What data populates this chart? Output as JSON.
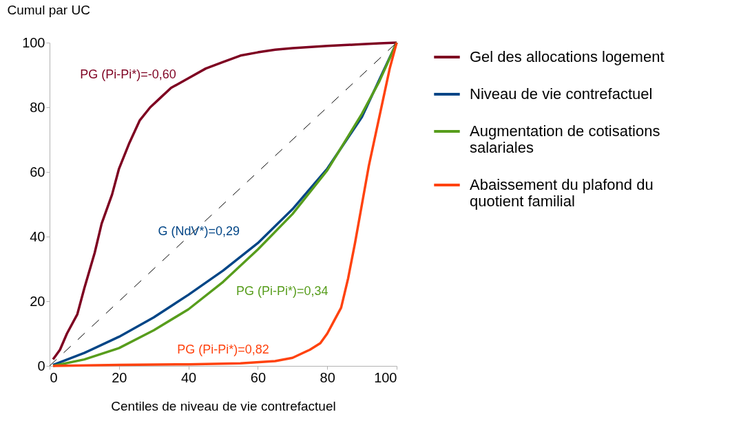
{
  "chart_data": {
    "type": "line",
    "xlabel": "Centiles de niveau de vie contrefactuel",
    "ylabel": "Cumul par UC",
    "xlim": [
      0,
      100
    ],
    "ylim": [
      0,
      100
    ],
    "xticks": [
      0,
      20,
      40,
      60,
      80,
      100
    ],
    "yticks": [
      0,
      20,
      40,
      60,
      80,
      100
    ],
    "grid": false,
    "legend": "right",
    "marker": "none",
    "line_style": "solid",
    "series": [
      {
        "name": "Gel des allocations logement",
        "color": "#7e0021",
        "x": [
          1,
          3,
          5,
          8,
          10,
          13,
          15,
          18,
          20,
          23,
          26,
          29,
          32,
          35,
          40,
          45,
          50,
          55,
          60,
          65,
          70,
          80,
          90,
          95,
          100
        ],
        "values": [
          2,
          5,
          10,
          16,
          24,
          35,
          44,
          53,
          61,
          69,
          76,
          80,
          83,
          86,
          89,
          92,
          94,
          96,
          97,
          97.8,
          98.3,
          99,
          99.5,
          99.8,
          100
        ]
      },
      {
        "name": "Niveau de vie contrefactuel",
        "color": "#004586",
        "x": [
          1,
          10,
          20,
          30,
          40,
          50,
          60,
          70,
          80,
          90,
          100
        ],
        "values": [
          0.3,
          4,
          9,
          15,
          22,
          29.5,
          38,
          48.5,
          61,
          77,
          100
        ]
      },
      {
        "name": "Augmentation de cotisations salariales",
        "color": "#579d1c",
        "x": [
          1,
          10,
          20,
          30,
          40,
          50,
          60,
          70,
          80,
          90,
          95,
          100
        ],
        "values": [
          0,
          2,
          5.5,
          11,
          17.5,
          26,
          36,
          47,
          60.5,
          78,
          88,
          100
        ]
      },
      {
        "name": "Abaissement du plafond du quotient familial",
        "color": "#ff420e",
        "x": [
          1,
          20,
          40,
          55,
          65,
          70,
          75,
          78,
          80,
          82,
          84,
          86,
          88,
          90,
          92,
          94,
          96,
          98,
          100
        ],
        "values": [
          0,
          0.3,
          0.5,
          0.8,
          1.5,
          2.5,
          5,
          7,
          10,
          14,
          18,
          27,
          38,
          50,
          62,
          72,
          82,
          92,
          100
        ]
      },
      {
        "color": "#000000",
        "line_style": "dashed",
        "x": [
          0,
          100
        ],
        "values": [
          0,
          100
        ]
      }
    ],
    "annotations": [
      "PG (Pi-Pi*)=-0,60",
      "G (NdV*)=0,29",
      "PG (Pi-Pi*)=0,34",
      "PG (Pi-Pi*)=0,82"
    ]
  }
}
